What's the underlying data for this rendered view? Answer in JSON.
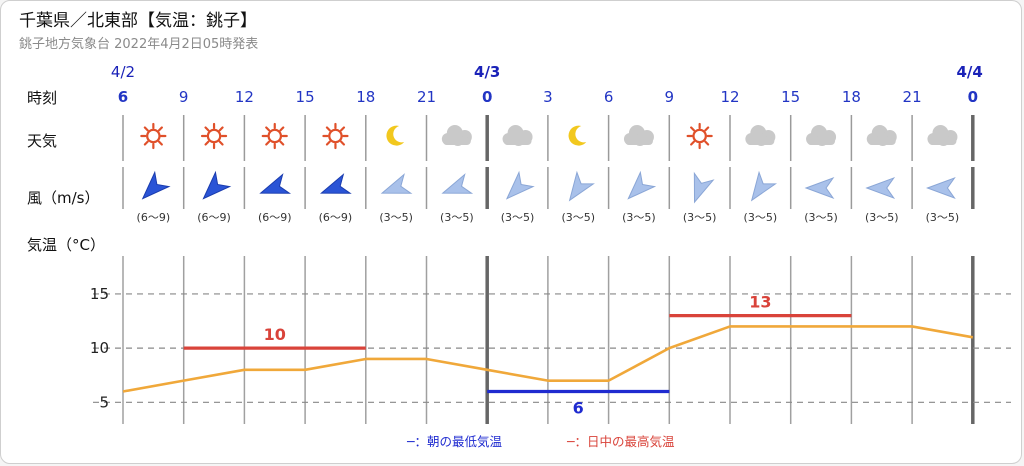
{
  "header": {
    "title": "千葉県／北東部【気温：銚子】",
    "subtitle": "銚子地方気象台 2022年4月2日05時発表"
  },
  "rows": {
    "time_label": "時刻",
    "weather_label": "天気",
    "wind_label": "風（m/s）",
    "temp_label": "気温（°C）"
  },
  "dates": [
    {
      "label": "4/2",
      "slot": 0
    },
    {
      "label": "4/3",
      "slot": 6
    },
    {
      "label": "4/4",
      "slot": 14
    }
  ],
  "hours": [
    "6",
    "9",
    "12",
    "15",
    "18",
    "21",
    "0",
    "3",
    "6",
    "9",
    "12",
    "15",
    "18",
    "21",
    "0"
  ],
  "weather": [
    "sun",
    "sun",
    "sun",
    "sun",
    "moon",
    "cloud",
    "cloud",
    "moon",
    "cloud",
    "sun",
    "cloud",
    "cloud",
    "cloud",
    "cloud"
  ],
  "wind": [
    {
      "dir": 225,
      "speed": "(6〜9)",
      "strong": true
    },
    {
      "dir": 225,
      "speed": "(6〜9)",
      "strong": true
    },
    {
      "dir": 250,
      "speed": "(6〜9)",
      "strong": true
    },
    {
      "dir": 250,
      "speed": "(6〜9)",
      "strong": true
    },
    {
      "dir": 250,
      "speed": "(3〜5)",
      "strong": false
    },
    {
      "dir": 250,
      "speed": "(3〜5)",
      "strong": false
    },
    {
      "dir": 225,
      "speed": "(3〜5)",
      "strong": false
    },
    {
      "dir": 215,
      "speed": "(3〜5)",
      "strong": false
    },
    {
      "dir": 225,
      "speed": "(3〜5)",
      "strong": false
    },
    {
      "dir": 200,
      "speed": "(3〜5)",
      "strong": false
    },
    {
      "dir": 215,
      "speed": "(3〜5)",
      "strong": false
    },
    {
      "dir": 270,
      "speed": "(3〜5)",
      "strong": false
    },
    {
      "dir": 270,
      "speed": "(3〜5)",
      "strong": false
    },
    {
      "dir": 270,
      "speed": "(3〜5)",
      "strong": false
    }
  ],
  "legend": {
    "min_label": "─：朝の最低気温",
    "max_label": "─：日中の最高気温"
  },
  "colors": {
    "temp_line": "#f0a83a",
    "max": "#d9433a",
    "min": "#1f2bd0",
    "date_blue": "#1a22b8",
    "hour_blue": "#2235c4",
    "sun": "#e0502a",
    "moon": "#f2c81e",
    "cloud": "#c9c9c9",
    "wind_strong": "#2a54d6",
    "wind_weak": "#a9c1ea"
  },
  "chart_data": {
    "type": "line",
    "title": "",
    "xlabel": "",
    "ylabel": "気温（°C）",
    "x": [
      "4/2 6",
      "9",
      "12",
      "15",
      "18",
      "21",
      "4/3 0",
      "3",
      "6",
      "9",
      "12",
      "15",
      "18",
      "21",
      "4/4 0"
    ],
    "series": [
      {
        "values": [
          6,
          7,
          8,
          8,
          9,
          9,
          8,
          7,
          7,
          10,
          12,
          12,
          12,
          12,
          11
        ]
      }
    ],
    "yticks": [
      5,
      10,
      15
    ],
    "ylim": [
      3,
      18.5
    ],
    "grid": true,
    "annotations": [
      {
        "type": "max",
        "value": 10,
        "label": "10",
        "from": "9",
        "to": "18"
      },
      {
        "type": "min",
        "value": 6,
        "label": "6",
        "from": "4/3 0",
        "to": "9"
      },
      {
        "type": "max",
        "value": 13,
        "label": "13",
        "from": "9",
        "to": "18"
      }
    ]
  }
}
